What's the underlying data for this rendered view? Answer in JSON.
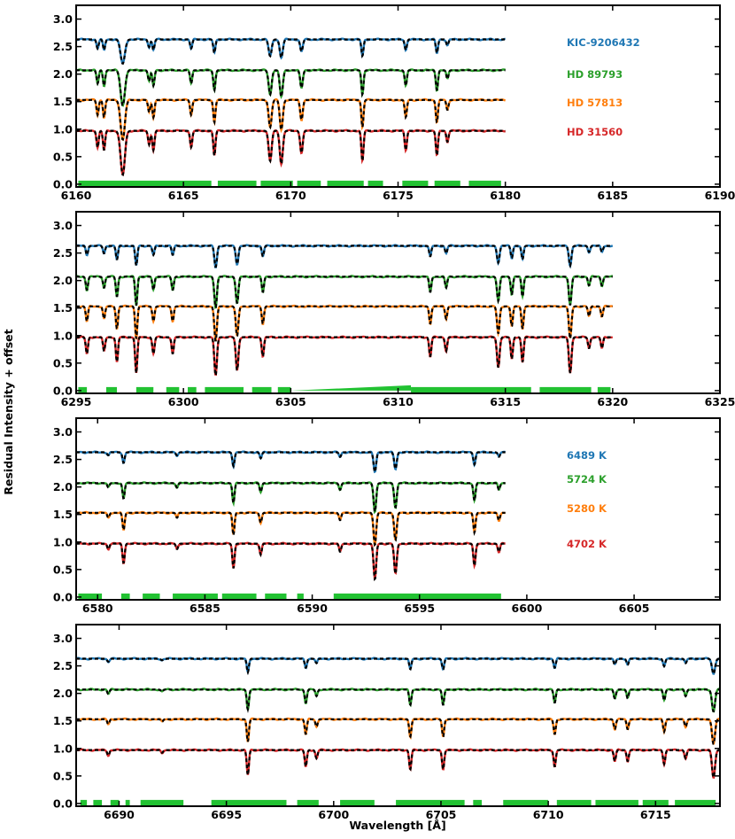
{
  "figure": {
    "ylabel": "Residual Intensity + offset",
    "xlabel": "Wavelength [Å]"
  },
  "colors": {
    "blue": "#1f77b4",
    "green": "#2ca02c",
    "orange": "#ff7f0e",
    "red": "#d62728",
    "mask": "#22c232",
    "model": "#000000"
  },
  "chart_data": [
    {
      "type": "line",
      "xlim": [
        6160,
        6190
      ],
      "ylim": [
        -0.05,
        3.25
      ],
      "xticks": [
        6160,
        6165,
        6170,
        6175,
        6180,
        6185,
        6190
      ],
      "yticks": [
        0.0,
        0.5,
        1.0,
        1.5,
        2.0,
        2.5,
        3.0
      ],
      "data_range": [
        6160,
        6180
      ],
      "offsets": [
        2.63,
        2.07,
        1.53,
        0.97
      ],
      "lines": [
        [
          6161.0,
          0.3,
          0.05
        ],
        [
          6161.3,
          0.35,
          0.05
        ],
        [
          6162.17,
          0.8,
          0.1
        ],
        [
          6163.4,
          0.25,
          0.05
        ],
        [
          6163.6,
          0.35,
          0.05
        ],
        [
          6165.36,
          0.3,
          0.05
        ],
        [
          6166.44,
          0.45,
          0.05
        ],
        [
          6169.04,
          0.55,
          0.07
        ],
        [
          6169.56,
          0.6,
          0.07
        ],
        [
          6170.5,
          0.4,
          0.06
        ],
        [
          6173.34,
          0.55,
          0.05
        ],
        [
          6175.36,
          0.35,
          0.05
        ],
        [
          6176.81,
          0.45,
          0.05
        ],
        [
          6177.3,
          0.2,
          0.05
        ]
      ],
      "masks": [
        [
          6160.1,
          6166.3
        ],
        [
          6166.6,
          6168.4
        ],
        [
          6168.6,
          6170.1
        ],
        [
          6170.3,
          6171.4
        ],
        [
          6171.7,
          6173.4
        ],
        [
          6173.6,
          6174.3
        ],
        [
          6175.2,
          6176.4
        ],
        [
          6176.7,
          6177.9
        ],
        [
          6178.3,
          6179.8
        ]
      ],
      "legend": [
        "KIC-9206432",
        "HD 89793",
        "HD 57813",
        "HD 31560"
      ]
    },
    {
      "type": "line",
      "xlim": [
        6295,
        6325
      ],
      "ylim": [
        -0.05,
        3.25
      ],
      "xticks": [
        6295,
        6300,
        6305,
        6310,
        6315,
        6320,
        6325
      ],
      "yticks": [
        0.0,
        0.5,
        1.0,
        1.5,
        2.0,
        2.5,
        3.0
      ],
      "data_range": [
        6295,
        6320
      ],
      "offsets": [
        2.63,
        2.07,
        1.53,
        0.97
      ],
      "lines": [
        [
          6295.5,
          0.3,
          0.05
        ],
        [
          6296.3,
          0.25,
          0.05
        ],
        [
          6296.9,
          0.45,
          0.05
        ],
        [
          6297.8,
          0.65,
          0.05
        ],
        [
          6298.6,
          0.3,
          0.05
        ],
        [
          6299.5,
          0.3,
          0.05
        ],
        [
          6301.5,
          0.7,
          0.06
        ],
        [
          6302.5,
          0.6,
          0.06
        ],
        [
          6303.7,
          0.35,
          0.05
        ],
        [
          6311.5,
          0.35,
          0.05
        ],
        [
          6312.24,
          0.25,
          0.05
        ],
        [
          6314.67,
          0.55,
          0.06
        ],
        [
          6315.3,
          0.4,
          0.05
        ],
        [
          6315.8,
          0.45,
          0.05
        ],
        [
          6318.02,
          0.65,
          0.06
        ],
        [
          6318.9,
          0.2,
          0.05
        ],
        [
          6319.5,
          0.2,
          0.05
        ]
      ],
      "masks": [
        [
          6295.1,
          6295.5
        ],
        [
          6296.4,
          6296.9
        ],
        [
          6297.8,
          6298.6
        ],
        [
          6299.2,
          6299.8
        ],
        [
          6300.2,
          6300.6
        ],
        [
          6301.0,
          6302.8
        ],
        [
          6303.2,
          6304.1
        ],
        [
          6304.4,
          6305.0
        ],
        [
          6310.6,
          6316.2
        ],
        [
          6316.6,
          6319.0
        ],
        [
          6319.3,
          6319.9
        ]
      ],
      "ramp": [
        6305.0,
        6310.6
      ]
    },
    {
      "type": "line",
      "xlim": [
        6579,
        6609
      ],
      "ylim": [
        -0.05,
        3.25
      ],
      "xticks": [
        6580,
        6585,
        6590,
        6595,
        6600,
        6605
      ],
      "yticks": [
        0.0,
        0.5,
        1.0,
        1.5,
        2.0,
        2.5,
        3.0
      ],
      "data_range": [
        6579,
        6599
      ],
      "offsets": [
        2.63,
        2.07,
        1.53,
        0.97
      ],
      "lines": [
        [
          6580.5,
          0.1,
          0.05
        ],
        [
          6581.21,
          0.35,
          0.05
        ],
        [
          6583.7,
          0.1,
          0.05
        ],
        [
          6586.33,
          0.45,
          0.05
        ],
        [
          6587.6,
          0.2,
          0.05
        ],
        [
          6591.3,
          0.15,
          0.05
        ],
        [
          6592.92,
          0.65,
          0.06
        ],
        [
          6593.88,
          0.55,
          0.06
        ],
        [
          6597.56,
          0.4,
          0.05
        ],
        [
          6598.7,
          0.15,
          0.05
        ]
      ],
      "masks": [
        [
          6579.1,
          6580.2
        ],
        [
          6581.1,
          6581.5
        ],
        [
          6582.1,
          6582.9
        ],
        [
          6583.5,
          6585.6
        ],
        [
          6585.8,
          6587.4
        ],
        [
          6587.8,
          6588.8
        ],
        [
          6589.3,
          6589.6
        ],
        [
          6591.0,
          6598.8
        ]
      ],
      "legend": [
        "6489 K",
        "5724 K",
        "5280 K",
        "4702 K"
      ]
    },
    {
      "type": "line",
      "xlim": [
        6688,
        6718
      ],
      "ylim": [
        -0.05,
        3.25
      ],
      "xticks": [
        6690,
        6695,
        6700,
        6705,
        6710,
        6715
      ],
      "yticks": [
        0.0,
        0.5,
        1.0,
        1.5,
        2.0,
        2.5,
        3.0
      ],
      "data_range": [
        6688,
        6718
      ],
      "offsets": [
        2.63,
        2.07,
        1.53,
        0.97
      ],
      "lines": [
        [
          6689.5,
          0.1,
          0.05
        ],
        [
          6692.0,
          0.05,
          0.05
        ],
        [
          6696.0,
          0.45,
          0.05
        ],
        [
          6698.7,
          0.3,
          0.05
        ],
        [
          6699.2,
          0.15,
          0.05
        ],
        [
          6703.57,
          0.35,
          0.05
        ],
        [
          6705.1,
          0.35,
          0.05
        ],
        [
          6710.3,
          0.3,
          0.05
        ],
        [
          6713.1,
          0.2,
          0.05
        ],
        [
          6713.7,
          0.2,
          0.05
        ],
        [
          6715.4,
          0.25,
          0.05
        ],
        [
          6716.4,
          0.15,
          0.05
        ],
        [
          6717.7,
          0.5,
          0.07
        ]
      ],
      "masks": [
        [
          6688.2,
          6688.5
        ],
        [
          6688.8,
          6689.2
        ],
        [
          6689.6,
          6690.0
        ],
        [
          6690.3,
          6690.5
        ],
        [
          6691.0,
          6693.0
        ],
        [
          6694.3,
          6697.8
        ],
        [
          6698.3,
          6699.3
        ],
        [
          6700.3,
          6701.9
        ],
        [
          6702.9,
          6706.1
        ],
        [
          6706.5,
          6706.9
        ],
        [
          6707.9,
          6710.0
        ],
        [
          6710.4,
          6712.0
        ],
        [
          6712.2,
          6714.2
        ],
        [
          6714.4,
          6715.6
        ],
        [
          6715.9,
          6717.8
        ]
      ]
    }
  ]
}
